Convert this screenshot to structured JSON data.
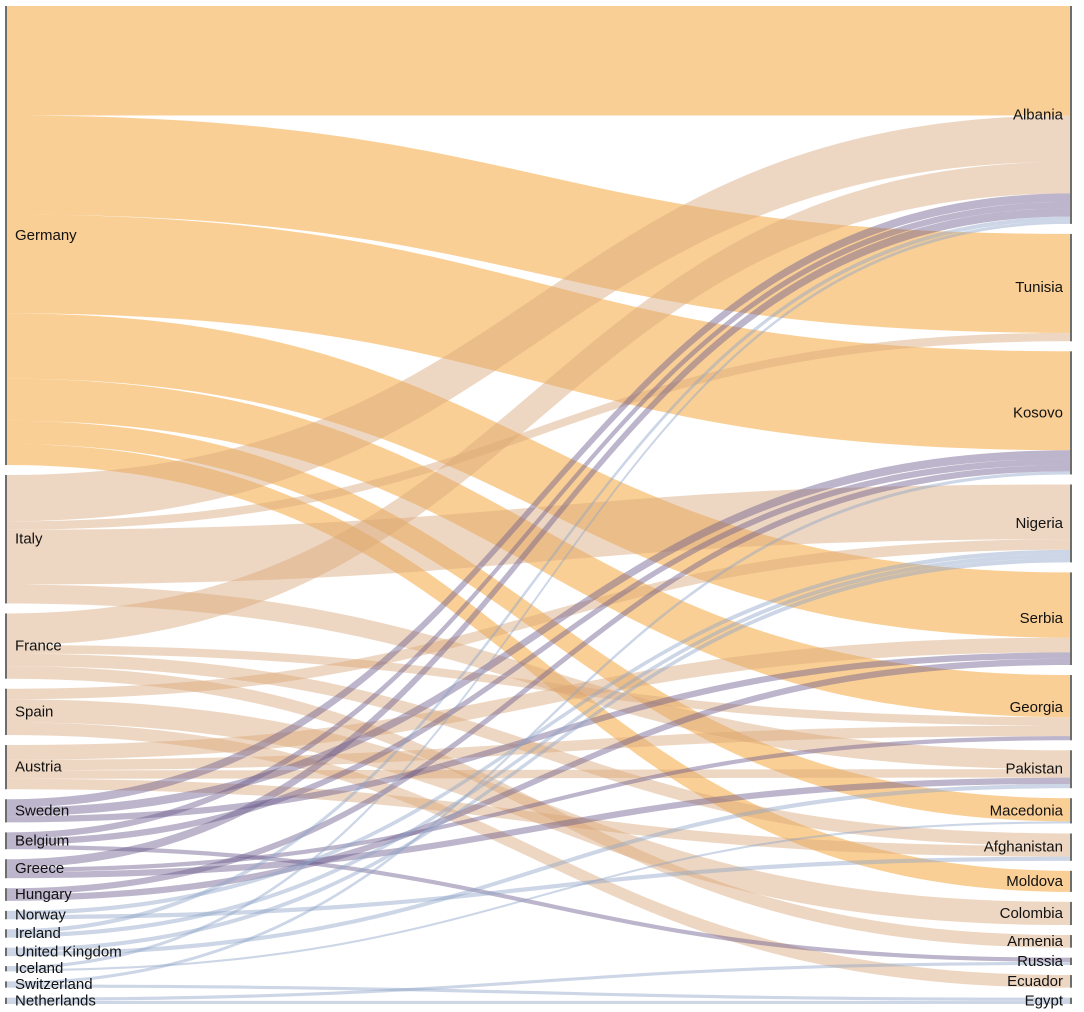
{
  "colors": {
    "flow_orange": "#f6a83e",
    "flow_tan": "#d9a777",
    "flow_purple": "#6b5b8c",
    "flow_blue": "#8fa3c8",
    "node_bar": "#6e6e6e"
  },
  "chart_data": {
    "type": "sankey",
    "sources": [
      {
        "name": "Germany"
      },
      {
        "name": "Italy"
      },
      {
        "name": "France"
      },
      {
        "name": "Spain"
      },
      {
        "name": "Austria"
      },
      {
        "name": "Sweden"
      },
      {
        "name": "Belgium"
      },
      {
        "name": "Greece"
      },
      {
        "name": "Hungary"
      },
      {
        "name": "Norway"
      },
      {
        "name": "Ireland"
      },
      {
        "name": "United Kingdom"
      },
      {
        "name": "Iceland"
      },
      {
        "name": "Switzerland"
      },
      {
        "name": "Netherlands"
      }
    ],
    "targets": [
      {
        "name": "Albania"
      },
      {
        "name": "Tunisia"
      },
      {
        "name": "Kosovo"
      },
      {
        "name": "Nigeria"
      },
      {
        "name": "Serbia"
      },
      {
        "name": "Georgia"
      },
      {
        "name": "Pakistan"
      },
      {
        "name": "Macedonia"
      },
      {
        "name": "Afghanistan"
      },
      {
        "name": "Moldova"
      },
      {
        "name": "Colombia"
      },
      {
        "name": "Armenia"
      },
      {
        "name": "Russia"
      },
      {
        "name": "Ecuador"
      },
      {
        "name": "Egypt"
      }
    ],
    "links": [
      {
        "source": "Germany",
        "target": "Albania",
        "value": 104
      },
      {
        "source": "Germany",
        "target": "Tunisia",
        "value": 94
      },
      {
        "source": "Germany",
        "target": "Kosovo",
        "value": 94
      },
      {
        "source": "Germany",
        "target": "Serbia",
        "value": 62
      },
      {
        "source": "Germany",
        "target": "Georgia",
        "value": 40
      },
      {
        "source": "Germany",
        "target": "Macedonia",
        "value": 22
      },
      {
        "source": "Germany",
        "target": "Moldova",
        "value": 20
      },
      {
        "source": "Italy",
        "target": "Albania",
        "value": 44
      },
      {
        "source": "Italy",
        "target": "Tunisia",
        "value": 8
      },
      {
        "source": "Italy",
        "target": "Nigeria",
        "value": 52
      },
      {
        "source": "Italy",
        "target": "Pakistan",
        "value": 18
      },
      {
        "source": "France",
        "target": "Albania",
        "value": 30
      },
      {
        "source": "France",
        "target": "Georgia",
        "value": 8
      },
      {
        "source": "France",
        "target": "Afghanistan",
        "value": 12
      },
      {
        "source": "France",
        "target": "Armenia",
        "value": 12
      },
      {
        "source": "Spain",
        "target": "Colombia",
        "value": 22
      },
      {
        "source": "Spain",
        "target": "Nigeria",
        "value": 10
      },
      {
        "source": "Spain",
        "target": "Ecuador",
        "value": 12
      },
      {
        "source": "Austria",
        "target": "Serbia",
        "value": 14
      },
      {
        "source": "Austria",
        "target": "Georgia",
        "value": 10
      },
      {
        "source": "Austria",
        "target": "Afghanistan",
        "value": 10
      },
      {
        "source": "Austria",
        "target": "Pakistan",
        "value": 8
      },
      {
        "source": "Sweden",
        "target": "Albania",
        "value": 8
      },
      {
        "source": "Sweden",
        "target": "Kosovo",
        "value": 8
      },
      {
        "source": "Sweden",
        "target": "Serbia",
        "value": 6
      },
      {
        "source": "Belgium",
        "target": "Albania",
        "value": 6
      },
      {
        "source": "Belgium",
        "target": "Kosovo",
        "value": 6
      },
      {
        "source": "Belgium",
        "target": "Russia",
        "value": 4
      },
      {
        "source": "Greece",
        "target": "Albania",
        "value": 8
      },
      {
        "source": "Greece",
        "target": "Pakistan",
        "value": 6
      },
      {
        "source": "Greece",
        "target": "Georgia",
        "value": 4
      },
      {
        "source": "Hungary",
        "target": "Kosovo",
        "value": 6
      },
      {
        "source": "Hungary",
        "target": "Serbia",
        "value": 6
      },
      {
        "source": "Norway",
        "target": "Nigeria",
        "value": 4
      },
      {
        "source": "Norway",
        "target": "Afghanistan",
        "value": 4
      },
      {
        "source": "Ireland",
        "target": "Nigeria",
        "value": 4
      },
      {
        "source": "Ireland",
        "target": "Albania",
        "value": 4
      },
      {
        "source": "United Kingdom",
        "target": "Pakistan",
        "value": 4
      },
      {
        "source": "United Kingdom",
        "target": "Nigeria",
        "value": 4
      },
      {
        "source": "Iceland",
        "target": "Albania",
        "value": 3
      },
      {
        "source": "Iceland",
        "target": "Macedonia",
        "value": 2
      },
      {
        "source": "Switzerland",
        "target": "Kosovo",
        "value": 3
      },
      {
        "source": "Switzerland",
        "target": "Egypt",
        "value": 3
      },
      {
        "source": "Netherlands",
        "target": "Egypt",
        "value": 3
      },
      {
        "source": "Netherlands",
        "target": "Russia",
        "value": 3
      }
    ]
  }
}
